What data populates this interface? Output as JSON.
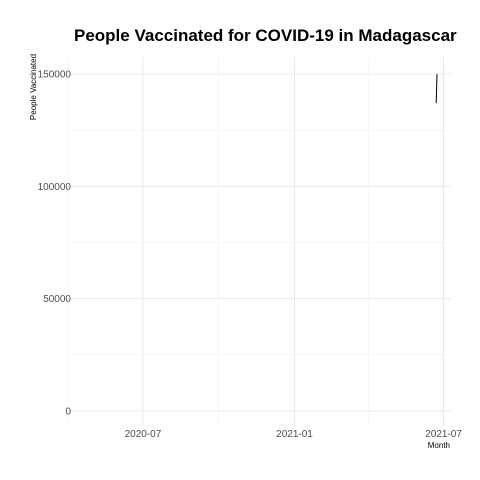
{
  "chart_data": {
    "type": "line",
    "title": "People Vaccinated for COVID-19 in Madagascar",
    "xlabel": "Month",
    "ylabel": "People Vaccinated",
    "x_ticks": [
      "2020-07",
      "2021-01",
      "2021-07"
    ],
    "y_ticks": [
      "0",
      "50000",
      "100000",
      "150000"
    ],
    "xlim": [
      "2020-04-01",
      "2021-07-10"
    ],
    "ylim": [
      0,
      150000
    ],
    "grid": true,
    "legend": "none",
    "series": [
      {
        "color": "#000000",
        "points": [
          {
            "x": "2021-06-22",
            "y": 137000
          },
          {
            "x": "2021-06-23",
            "y": 150000
          }
        ]
      }
    ]
  }
}
